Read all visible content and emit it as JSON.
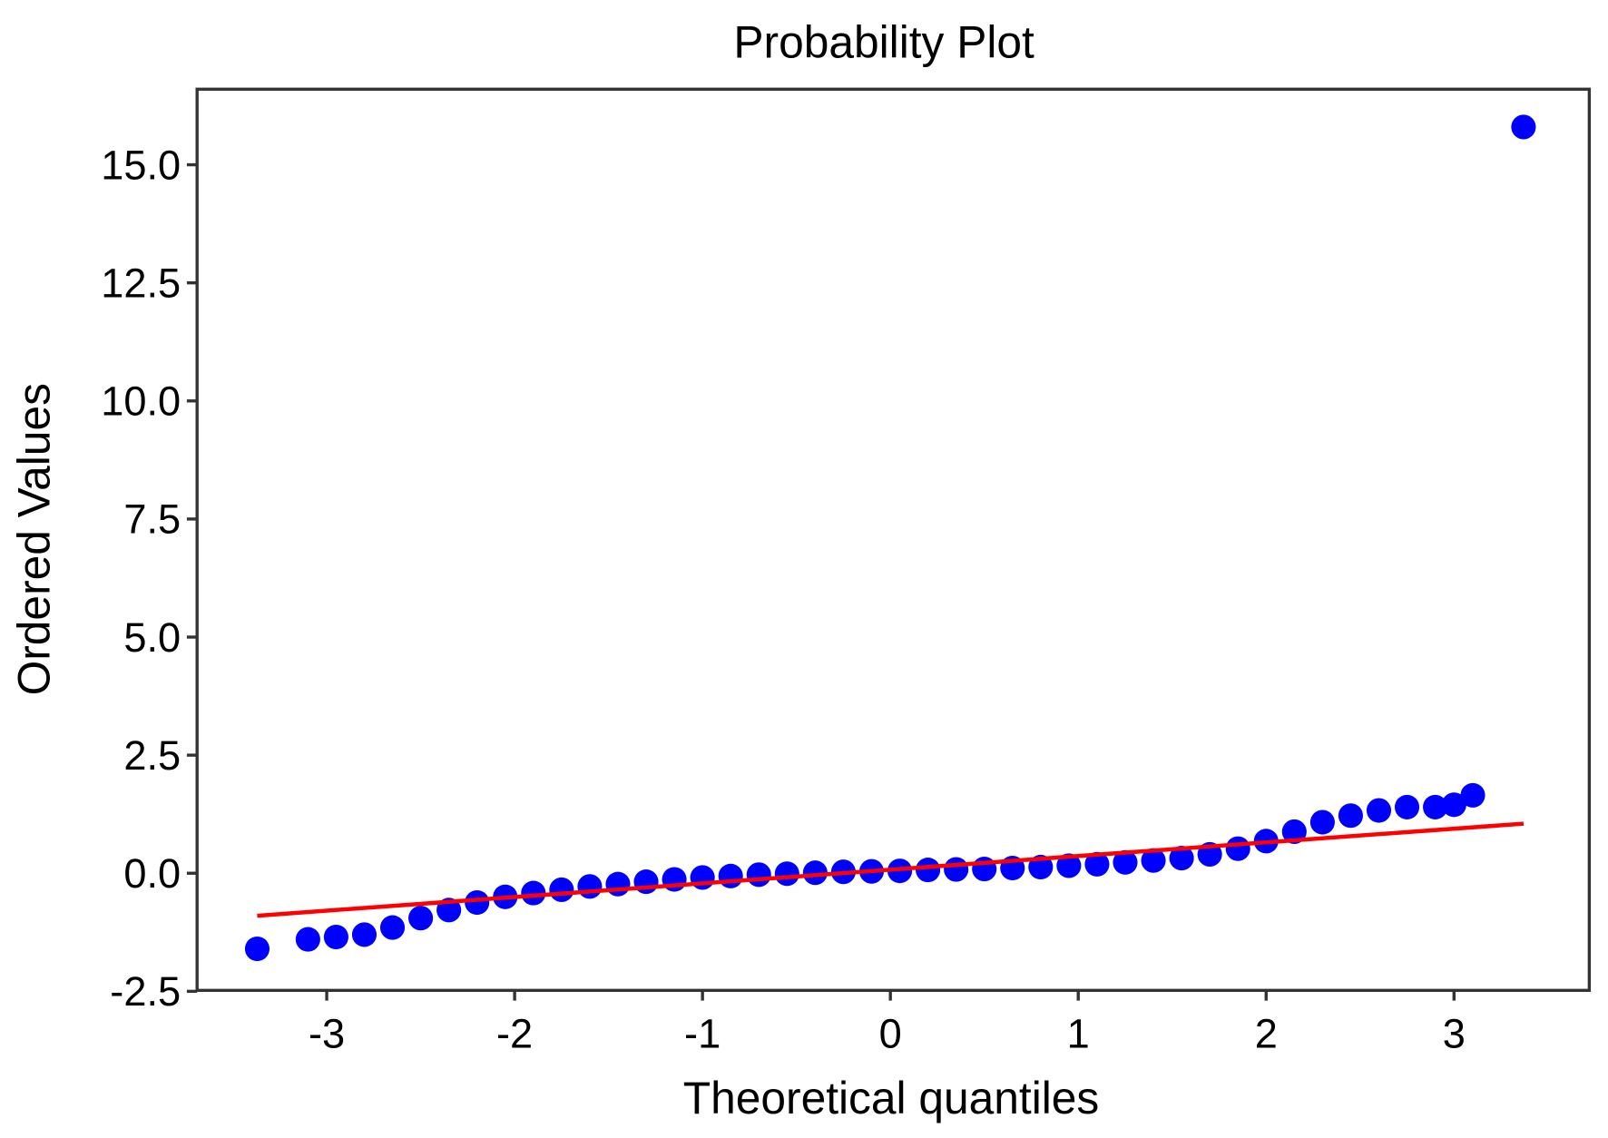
{
  "chart_data": {
    "type": "scatter",
    "title": "Probability Plot",
    "xlabel": "Theoretical quantiles",
    "ylabel": "Ordered Values",
    "xlim": [
      -3.69,
      3.72
    ],
    "ylim": [
      -2.48,
      16.6
    ],
    "xticks": [
      -3,
      -2,
      -1,
      0,
      1,
      2,
      3
    ],
    "xtick_labels": [
      "-3",
      "-2",
      "-1",
      "0",
      "1",
      "2",
      "3"
    ],
    "yticks": [
      -2.5,
      0,
      2.5,
      5,
      7.5,
      10,
      12.5,
      15
    ],
    "ytick_labels": [
      "-2.5",
      "0.0",
      "2.5",
      "5.0",
      "7.5",
      "10.0",
      "12.5",
      "15.0"
    ],
    "grid": false,
    "colors": {
      "points": "#0000ff",
      "fit_line": "#ff0000",
      "axes": "#333333"
    },
    "points": [
      [
        -3.37,
        -1.6
      ],
      [
        -3.1,
        -1.4
      ],
      [
        -2.95,
        -1.35
      ],
      [
        -2.8,
        -1.3
      ],
      [
        -2.65,
        -1.15
      ],
      [
        -2.5,
        -0.95
      ],
      [
        -2.35,
        -0.78
      ],
      [
        -2.2,
        -0.62
      ],
      [
        -2.05,
        -0.5
      ],
      [
        -1.9,
        -0.42
      ],
      [
        -1.75,
        -0.35
      ],
      [
        -1.6,
        -0.28
      ],
      [
        -1.45,
        -0.23
      ],
      [
        -1.3,
        -0.18
      ],
      [
        -1.15,
        -0.13
      ],
      [
        -1.0,
        -0.09
      ],
      [
        -0.85,
        -0.06
      ],
      [
        -0.7,
        -0.03
      ],
      [
        -0.55,
        -0.01
      ],
      [
        -0.4,
        0.01
      ],
      [
        -0.25,
        0.03
      ],
      [
        -0.1,
        0.04
      ],
      [
        0.05,
        0.05
      ],
      [
        0.2,
        0.07
      ],
      [
        0.35,
        0.08
      ],
      [
        0.5,
        0.09
      ],
      [
        0.65,
        0.11
      ],
      [
        0.8,
        0.13
      ],
      [
        0.95,
        0.16
      ],
      [
        1.1,
        0.19
      ],
      [
        1.25,
        0.23
      ],
      [
        1.4,
        0.27
      ],
      [
        1.55,
        0.32
      ],
      [
        1.7,
        0.4
      ],
      [
        1.85,
        0.52
      ],
      [
        2.0,
        0.68
      ],
      [
        2.15,
        0.88
      ],
      [
        2.3,
        1.08
      ],
      [
        2.45,
        1.22
      ],
      [
        2.6,
        1.33
      ],
      [
        2.75,
        1.4
      ],
      [
        2.9,
        1.4
      ],
      [
        3.0,
        1.45
      ],
      [
        3.1,
        1.65
      ],
      [
        3.37,
        15.8
      ]
    ],
    "fit_line": {
      "x": [
        -3.37,
        3.37
      ],
      "y": [
        -0.9,
        1.05
      ]
    }
  }
}
